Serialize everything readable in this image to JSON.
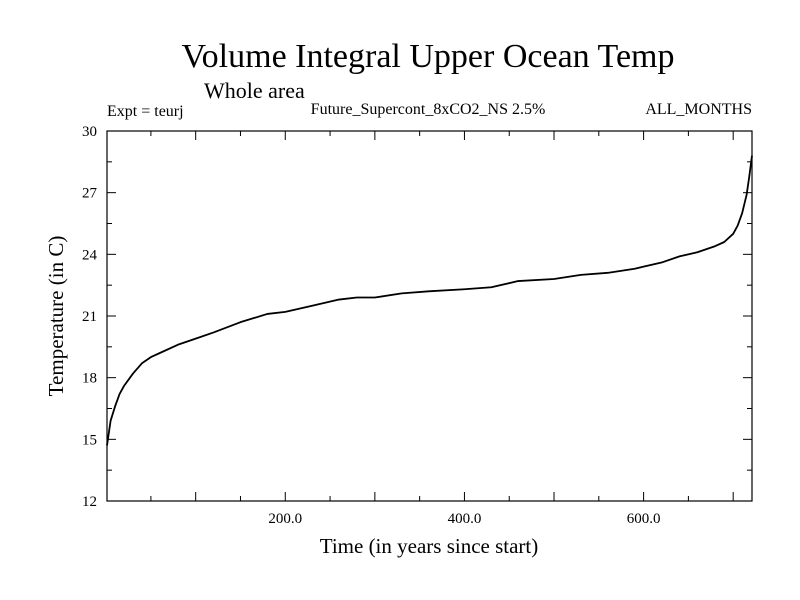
{
  "chart_data": {
    "type": "line",
    "title": "Volume Integral Upper Ocean Temp",
    "subtitle": "Whole area",
    "header_left": "Expt = teurj",
    "header_center": "Future_Supercont_8xCO2_NS 2.5%",
    "header_right": "ALL_MONTHS",
    "xlabel": "Time (in years since start)",
    "ylabel": "Temperature (in C)",
    "xlim": [
      1,
      721
    ],
    "ylim": [
      12,
      30
    ],
    "x_ticks": [
      200,
      400,
      600
    ],
    "x_tick_labels": [
      "200.0",
      "400.0",
      "600.0"
    ],
    "y_ticks": [
      12,
      15,
      18,
      21,
      24,
      27,
      30
    ],
    "y_tick_labels": [
      "12",
      "15",
      "18",
      "21",
      "24",
      "27",
      "30"
    ],
    "grid": false,
    "legend": "none",
    "line_color": "#000000",
    "series": [
      {
        "x": [
          1,
          5,
          10,
          15,
          20,
          30,
          40,
          50,
          60,
          80,
          100,
          120,
          150,
          180,
          200,
          230,
          260,
          280,
          300,
          330,
          360,
          400,
          430,
          460,
          500,
          530,
          560,
          590,
          600,
          620,
          640,
          660,
          680,
          690,
          700,
          705,
          710,
          715,
          718,
          721
        ],
        "values": [
          14.7,
          15.9,
          16.6,
          17.2,
          17.6,
          18.2,
          18.7,
          19.0,
          19.2,
          19.6,
          19.9,
          20.2,
          20.7,
          21.1,
          21.2,
          21.5,
          21.8,
          21.9,
          21.9,
          22.1,
          22.2,
          22.3,
          22.4,
          22.7,
          22.8,
          23.0,
          23.1,
          23.3,
          23.4,
          23.6,
          23.9,
          24.1,
          24.4,
          24.6,
          25.0,
          25.4,
          26.0,
          26.9,
          27.8,
          28.8
        ]
      }
    ]
  }
}
